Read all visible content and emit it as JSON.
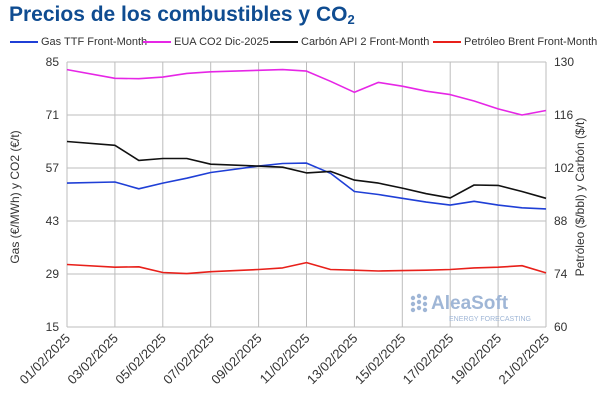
{
  "title": "Precios de los combustibles y CO",
  "title_sub": "2",
  "watermark": {
    "brand": "AleaSoft",
    "tagline": "ENERGY FORECASTING"
  },
  "chart_data": {
    "type": "line",
    "x": [
      "01/02/2025",
      "03/02/2025",
      "04/02/2025",
      "05/02/2025",
      "06/02/2025",
      "07/02/2025",
      "09/02/2025",
      "10/02/2025",
      "11/02/2025",
      "12/02/2025",
      "13/02/2025",
      "14/02/2025",
      "15/02/2025",
      "16/02/2025",
      "17/02/2025",
      "18/02/2025",
      "19/02/2025",
      "20/02/2025",
      "21/02/2025"
    ],
    "x_tick_labels": [
      "01/02/2025",
      "03/02/2025",
      "05/02/2025",
      "07/02/2025",
      "09/02/2025",
      "11/02/2025",
      "13/02/2025",
      "15/02/2025",
      "17/02/2025",
      "19/02/2025",
      "21/02/2025"
    ],
    "ylabel_left": "Gas (€/MWh) y CO2 (€/t)",
    "ylabel_right": "Petróleo ($/bbl) y Carbón ($/t)",
    "ylim_left": [
      15,
      85
    ],
    "ylim_right": [
      60,
      130
    ],
    "yticks_left": [
      15,
      29,
      43,
      57,
      71,
      85
    ],
    "yticks_right": [
      60,
      74,
      88,
      102,
      116,
      130
    ],
    "grid": true,
    "legend_position": "top",
    "series": [
      {
        "name": "Gas TTF Front-Month",
        "axis": "left",
        "color": "#1f3fd6",
        "values": [
          53.0,
          53.3,
          51.5,
          53.0,
          54.3,
          55.8,
          57.5,
          58.2,
          58.3,
          55.6,
          50.8,
          50.0,
          49.0,
          48.0,
          47.2,
          48.2,
          47.2,
          46.5,
          46.2
        ]
      },
      {
        "name": "EUA CO2 Dic-2025",
        "axis": "left",
        "color": "#e626e6",
        "values": [
          83.0,
          80.7,
          80.6,
          81.0,
          82.0,
          82.4,
          82.8,
          83.0,
          82.6,
          79.9,
          77.0,
          79.6,
          78.6,
          77.3,
          76.4,
          74.7,
          72.6,
          71.0,
          72.2
        ]
      },
      {
        "name": "Carbón API 2 Front-Month",
        "axis": "right",
        "color": "#111111",
        "values": [
          109.0,
          108.0,
          104.0,
          104.5,
          104.5,
          103.0,
          102.5,
          102.2,
          100.7,
          101.1,
          98.8,
          98.0,
          96.7,
          95.2,
          94.1,
          97.5,
          97.4,
          95.8,
          94.0
        ]
      },
      {
        "name": "Petróleo Brent Front-Month",
        "axis": "right",
        "color": "#e8201a",
        "values": [
          76.5,
          75.8,
          75.9,
          74.4,
          74.1,
          74.6,
          75.2,
          75.6,
          77.0,
          75.2,
          75.0,
          74.8,
          74.9,
          75.0,
          75.2,
          75.6,
          75.8,
          76.2,
          74.3
        ]
      }
    ]
  }
}
